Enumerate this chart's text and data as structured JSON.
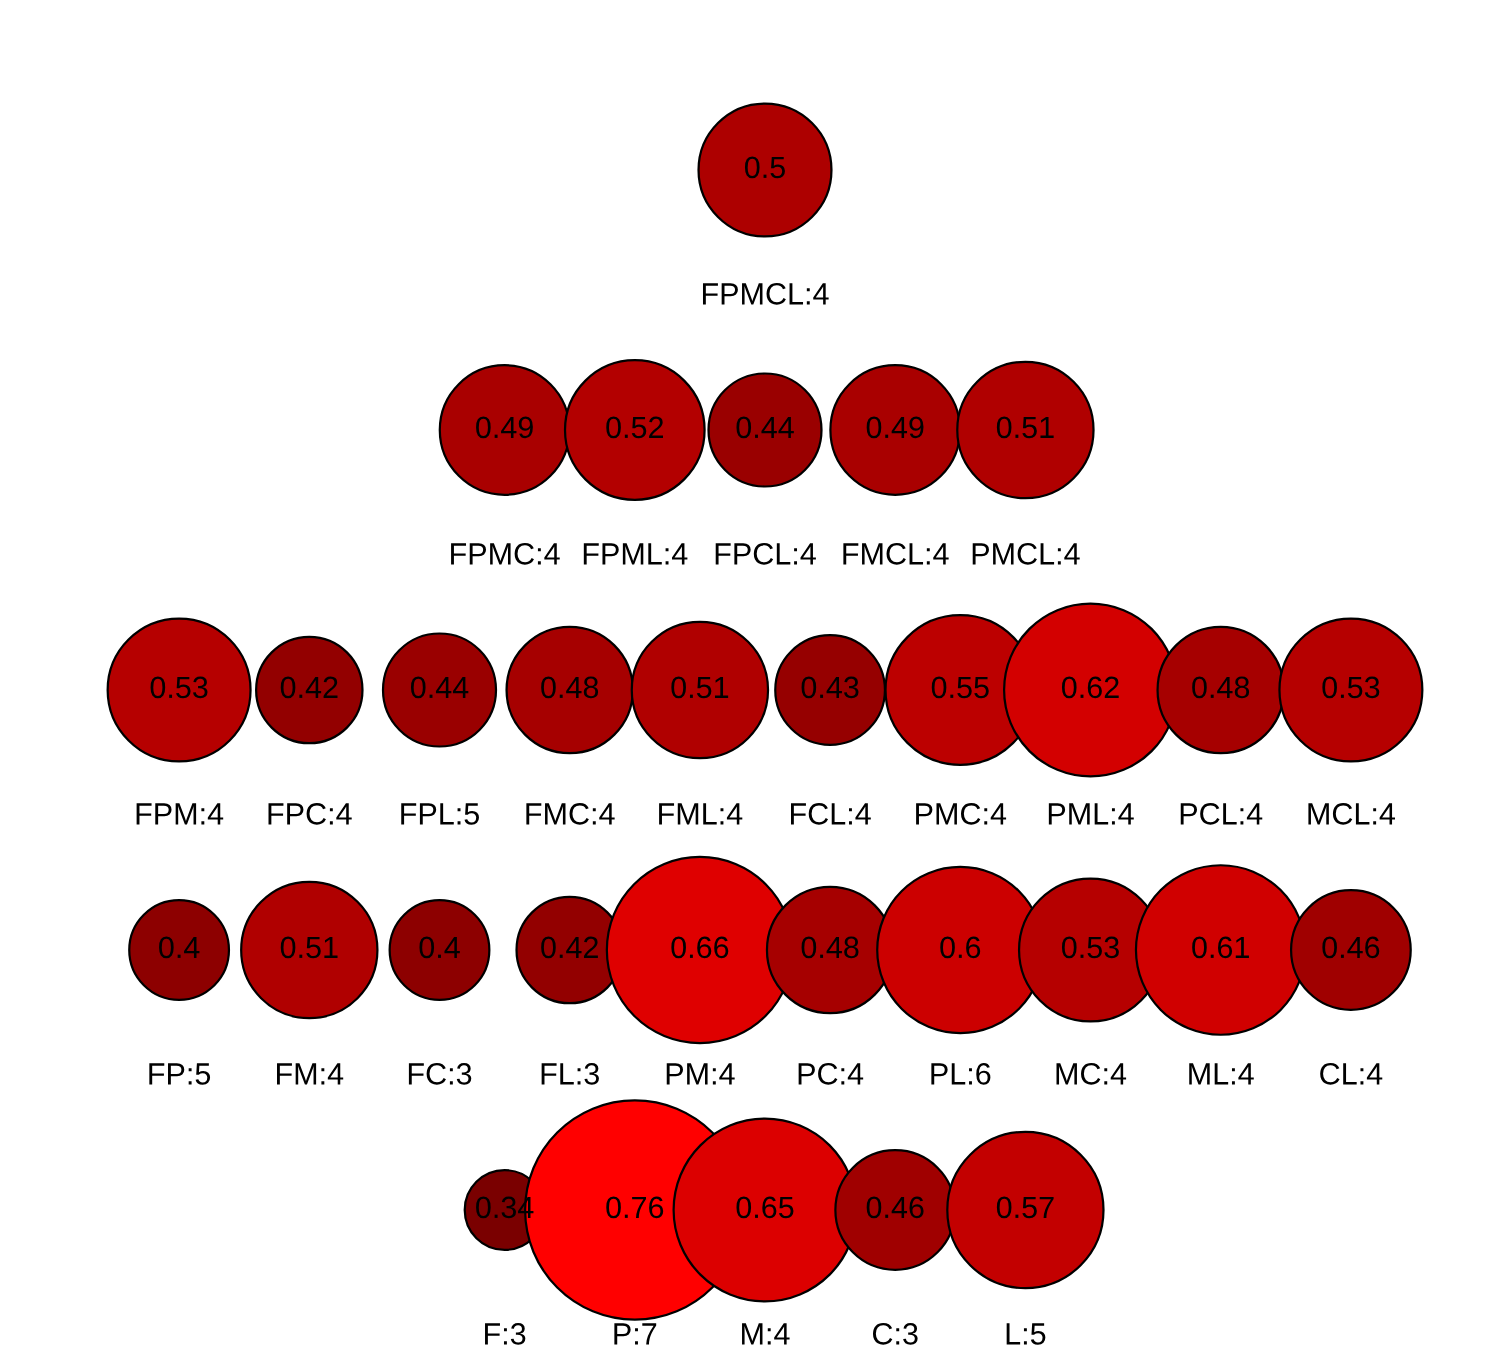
{
  "chart_data": [
    {
      "type": "other",
      "categories": [
        "FPMCL:4"
      ],
      "values": [
        0.5
      ],
      "colors": [
        "#ad0000"
      ],
      "data_labels": true
    },
    {
      "type": "other",
      "categories": [
        "FPMC:4",
        "FPML:4",
        "FPCL:4",
        "FMCL:4",
        "PMCL:4"
      ],
      "values": [
        0.49,
        0.52,
        0.44,
        0.49,
        0.51
      ],
      "colors": [
        "#a90000",
        "#b30000",
        "#9a0000",
        "#a90000",
        "#b00000"
      ],
      "data_labels": true
    },
    {
      "type": "other",
      "categories": [
        "FPM:4",
        "FPC:4",
        "FPL:5",
        "FMC:4",
        "FML:4",
        "FCL:4",
        "PMC:4",
        "PML:4",
        "PCL:4",
        "MCL:4"
      ],
      "values": [
        0.53,
        0.42,
        0.44,
        0.48,
        0.51,
        0.43,
        0.55,
        0.62,
        0.48,
        0.53
      ],
      "colors": [
        "#b60000",
        "#930000",
        "#9a0000",
        "#a60000",
        "#b00000",
        "#960000",
        "#bc0000",
        "#d30000",
        "#a60000",
        "#b60000"
      ],
      "data_labels": true
    },
    {
      "type": "other",
      "categories": [
        "FP:5",
        "FM:4",
        "FC:3",
        "FL:3",
        "PM:4",
        "PC:4",
        "PL:6",
        "MC:4",
        "ML:4",
        "CL:4"
      ],
      "values": [
        0.4,
        0.51,
        0.4,
        0.42,
        0.66,
        0.48,
        0.6,
        0.53,
        0.61,
        0.46
      ],
      "colors": [
        "#8d0000",
        "#b00000",
        "#8d0000",
        "#930000",
        "#df0000",
        "#a60000",
        "#cc0000",
        "#b60000",
        "#d00000",
        "#a00000"
      ],
      "data_labels": true
    },
    {
      "type": "other",
      "categories": [
        "F:3",
        "P:7",
        "M:4",
        "C:3",
        "L:5"
      ],
      "values": [
        0.34,
        0.76,
        0.65,
        0.46,
        0.57
      ],
      "colors": [
        "#7a0000",
        "#ff0000",
        "#dc0000",
        "#a00000",
        "#c30000"
      ],
      "data_labels": true
    }
  ]
}
